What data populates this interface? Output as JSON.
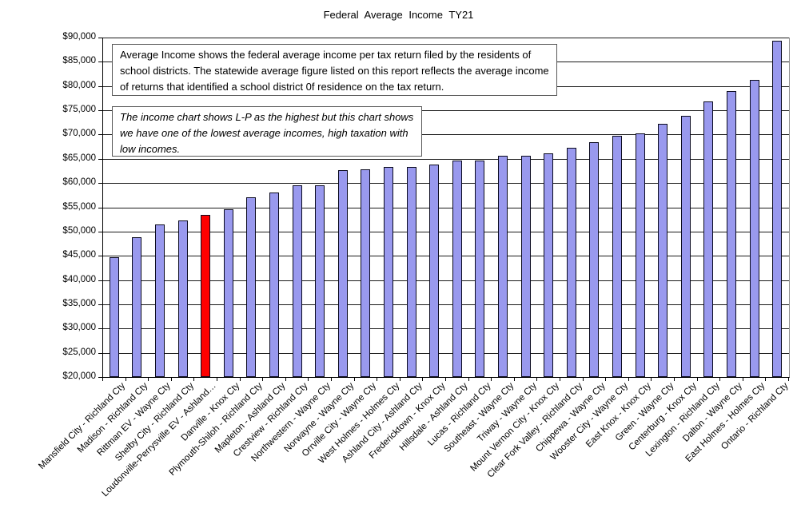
{
  "title": "Federal Average Income TY21",
  "annotations": {
    "box1": "Average Income shows the federal average income per tax return filed by the residents of school districts. The statewide average figure listed on this report reflects the average income of returns that identified a school district 0f residence on the tax return.",
    "box2": "The income chart shows L-P as the highest but this chart shows we have one of the lowest average incomes, high taxation with low incomes."
  },
  "chart_data": {
    "type": "bar",
    "title": "Federal Average Income TY21",
    "categories": [
      "Mansfield City - Richland Cty",
      "Madison - Richland Cty",
      "Rittman EV - Wayne Cty",
      "Shelby City - Richland Cty",
      "Loudonville-Perrysville EV - Ashland…",
      "Danville - Knox Cty",
      "Plymouth-Shiloh - Richland Cty",
      "Mapleton - Ashland Cty",
      "Crestview - Richland Cty",
      "Northwestern - Wayne Cty",
      "Norwayne - Wayne Cty",
      "Orrville City - Wayne Cty",
      "West Holmes - Holmes Cty",
      "Ashland City - Ashland Cty",
      "Fredericktown - Knox Cty",
      "Hillsdale - Ashland Cty",
      "Lucas - Richland Cty",
      "Southeast - Wayne Cty",
      "Triway - Wayne Cty",
      "Mount Vernon City - Knox Cty",
      "Clear Fork Valley - Richland Cty",
      "Chippewa - Wayne Cty",
      "Wooster City - Wayne Cty",
      "East Knox - Knox Cty",
      "Green - Wayne Cty",
      "Centerburg - Knox Cty",
      "Lexington - Richland Cty",
      "Dalton - Wayne Cty",
      "East Holmes - Holmes Cty",
      "Ontario - Richland Cty"
    ],
    "values": [
      44700,
      48800,
      51500,
      52300,
      53400,
      54600,
      57000,
      58100,
      59600,
      59600,
      62600,
      62800,
      63300,
      63400,
      63800,
      64600,
      64700,
      65600,
      65700,
      66200,
      67300,
      68500,
      69700,
      70200,
      72200,
      73900,
      76800,
      79000,
      81200,
      89400
    ],
    "highlight": {
      "index": 4,
      "category": "Loudonville-Perrysville EV - Ashland…",
      "color": "#FF0000"
    },
    "bar_color": "#9999EE",
    "xlabel": "",
    "ylabel": "",
    "ylim": [
      20000,
      90000
    ],
    "ytick_step": 5000,
    "ytick_labels": [
      "$20,000",
      "$25,000",
      "$30,000",
      "$35,000",
      "$40,000",
      "$45,000",
      "$50,000",
      "$55,000",
      "$60,000",
      "$65,000",
      "$70,000",
      "$75,000",
      "$80,000",
      "$85,000",
      "$90,000"
    ],
    "grid": true,
    "legend": false
  }
}
